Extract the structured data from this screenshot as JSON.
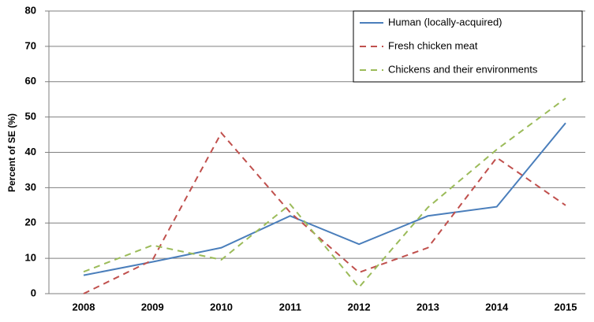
{
  "chart_data": {
    "type": "line",
    "y_label": "Percent of SE (%)",
    "categories": [
      "2008",
      "2009",
      "2010",
      "2011",
      "2012",
      "2013",
      "2014",
      "2015"
    ],
    "series": [
      {
        "name": "Human (locally-acquired)",
        "color": "#4a7ebb",
        "dash": "none",
        "values": [
          5.2,
          9,
          13,
          22,
          14,
          22,
          24.6,
          48.3
        ]
      },
      {
        "name": "Fresh chicken meat",
        "color": "#c0504d",
        "dash": "8,6",
        "values": [
          0,
          9.5,
          45.5,
          23,
          6,
          13,
          38.5,
          25
        ]
      },
      {
        "name": "Chickens and their environments",
        "color": "#9bbb59",
        "dash": "8,6",
        "values": [
          6.2,
          13.7,
          9.6,
          25.3,
          1.8,
          24.4,
          40.8,
          55.3
        ]
      }
    ],
    "ylim": [
      0,
      80
    ],
    "yticks": [
      0,
      10,
      20,
      30,
      40,
      50,
      60,
      70,
      80
    ],
    "grid": true,
    "legend": "top-right"
  }
}
